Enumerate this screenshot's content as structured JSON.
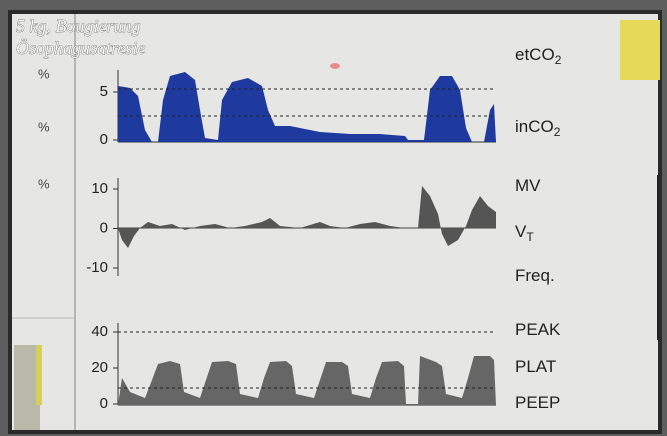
{
  "caption": [
    "5 kg, Bougierung",
    "Ösophagusatresie"
  ],
  "left_units": [
    "%",
    "%",
    "%"
  ],
  "panels": [
    {
      "ticks": [
        5,
        0
      ],
      "labels": [
        {
          "main": "etCO",
          "sub": "2"
        },
        {
          "main": "inCO",
          "sub": "2"
        }
      ]
    },
    {
      "ticks": [
        10,
        0,
        -10
      ],
      "labels": [
        {
          "main": "MV"
        },
        {
          "main": "V",
          "sub": "T"
        },
        {
          "main": "Freq."
        }
      ]
    },
    {
      "ticks": [
        40,
        20,
        0
      ],
      "labels": [
        {
          "main": "PEAK"
        },
        {
          "main": "PLAT"
        },
        {
          "main": "PEEP"
        }
      ]
    }
  ]
}
